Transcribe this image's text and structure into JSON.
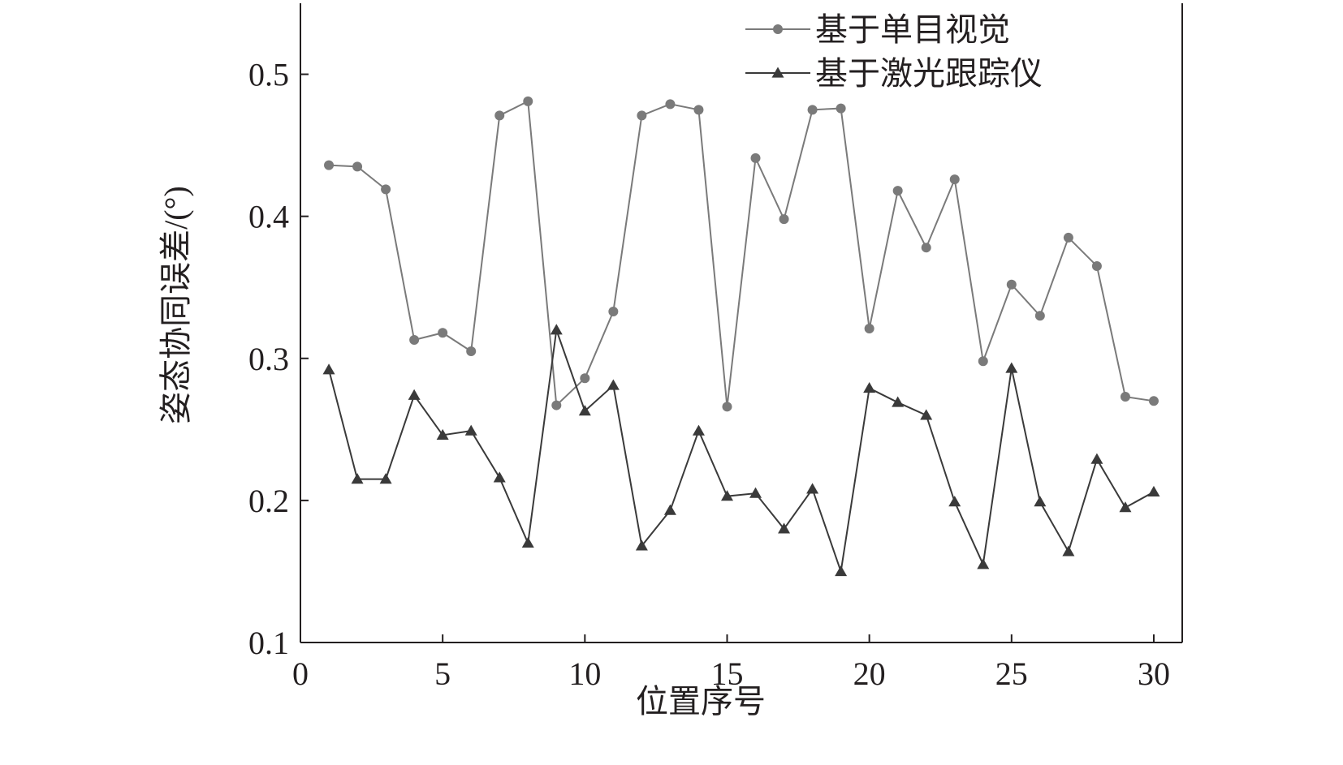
{
  "chart_data": {
    "type": "line",
    "title": "",
    "xlabel": "位置序号",
    "ylabel": "姿态协同误差/(°)",
    "xlim": [
      0,
      31
    ],
    "ylim": [
      0.1,
      0.55
    ],
    "xticks": [
      0,
      5,
      10,
      15,
      20,
      25,
      30
    ],
    "xtick_labels": [
      "0",
      "5",
      "10",
      "15",
      "20",
      "25",
      "30"
    ],
    "yticks": [
      0.1,
      0.2,
      0.3,
      0.4,
      0.5
    ],
    "ytick_labels": [
      "0.1",
      "0.2",
      "0.3",
      "0.4",
      "0.5"
    ],
    "grid": false,
    "legend_position": "top-right",
    "x": [
      1,
      2,
      3,
      4,
      5,
      6,
      7,
      8,
      9,
      10,
      11,
      12,
      13,
      14,
      15,
      16,
      17,
      18,
      19,
      20,
      21,
      22,
      23,
      24,
      25,
      26,
      27,
      28,
      29,
      30
    ],
    "series": [
      {
        "name": "基于单目视觉",
        "marker": "circle",
        "color": "#7a7a7a",
        "values": [
          0.436,
          0.435,
          0.419,
          0.313,
          0.318,
          0.305,
          0.471,
          0.481,
          0.267,
          0.286,
          0.333,
          0.471,
          0.479,
          0.475,
          0.266,
          0.441,
          0.398,
          0.475,
          0.476,
          0.321,
          0.418,
          0.378,
          0.426,
          0.298,
          0.352,
          0.33,
          0.385,
          0.365,
          0.273,
          0.27
        ]
      },
      {
        "name": "基于激光跟踪仪",
        "marker": "triangle",
        "color": "#3a3a3a",
        "values": [
          0.292,
          0.215,
          0.215,
          0.274,
          0.246,
          0.249,
          0.216,
          0.17,
          0.32,
          0.263,
          0.281,
          0.168,
          0.193,
          0.249,
          0.203,
          0.205,
          0.18,
          0.208,
          0.15,
          0.279,
          0.269,
          0.26,
          0.199,
          0.155,
          0.293,
          0.199,
          0.164,
          0.229,
          0.195,
          0.206
        ]
      }
    ]
  }
}
